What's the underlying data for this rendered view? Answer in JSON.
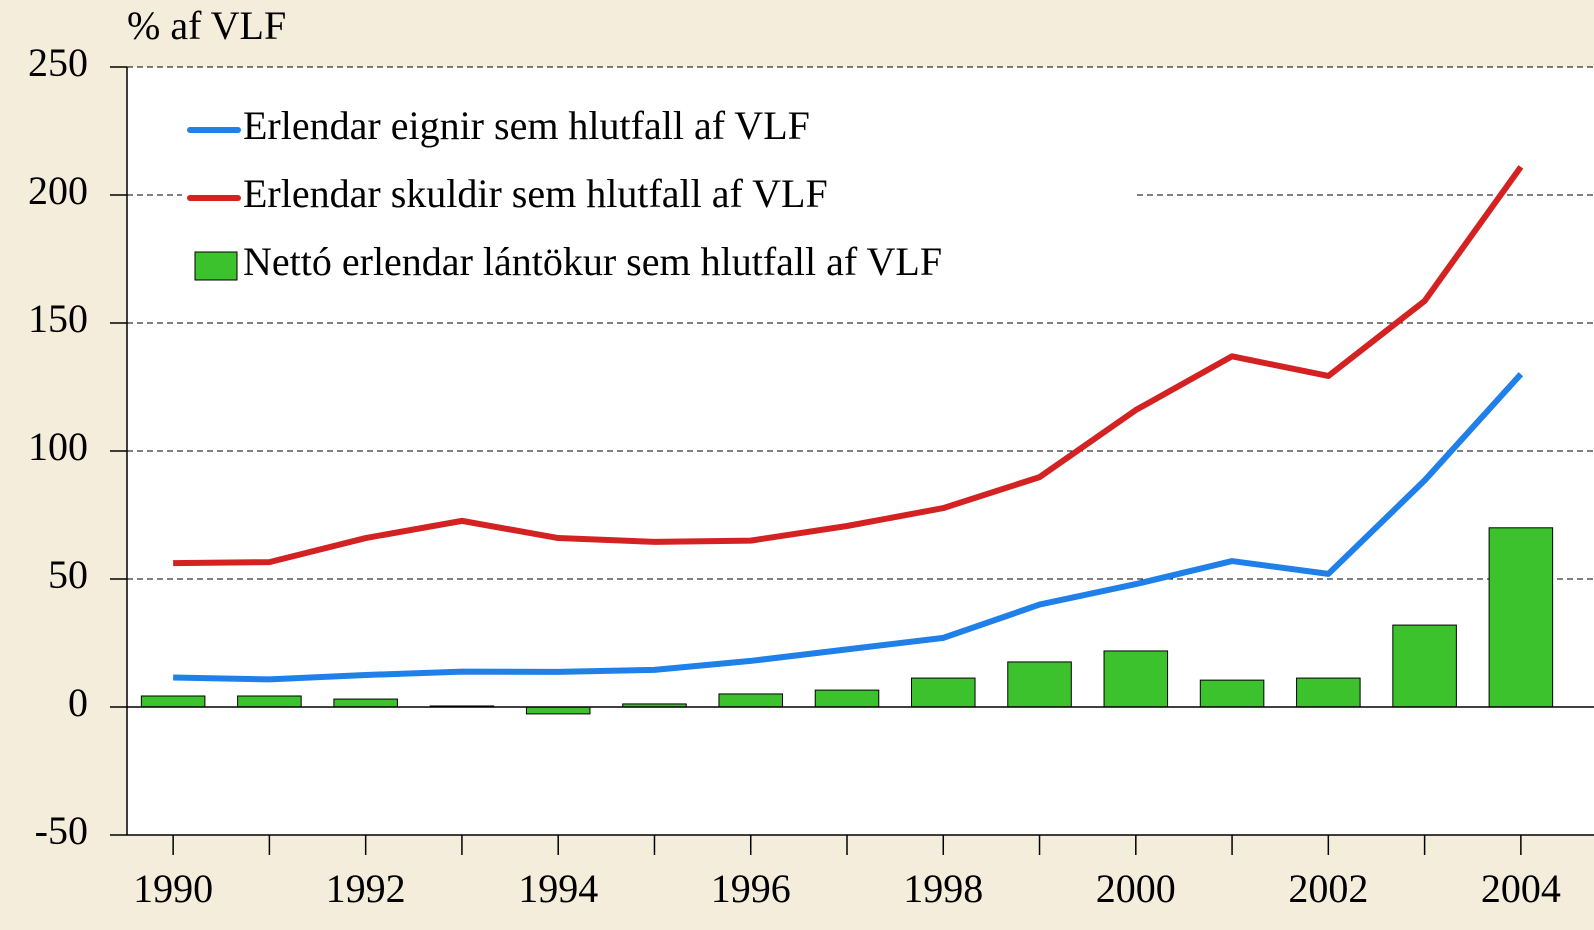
{
  "chart_data": {
    "type": "bar",
    "y_label": "% af VLF",
    "categories": [
      "1990",
      null,
      "1992",
      null,
      "1994",
      null,
      "1996",
      null,
      "1998",
      null,
      "2000",
      null,
      "2002",
      null,
      "2004"
    ],
    "series": [
      {
        "name": "Erlendar eignir sem hlutfall af VLF",
        "type": "line",
        "color": "#1e80e8",
        "values": [
          11.5,
          10.8,
          12.5,
          13.8,
          13.7,
          14.5,
          18,
          22.5,
          27,
          40,
          48,
          57,
          52,
          88.5,
          130
        ]
      },
      {
        "name": "Erlendar skuldir sem hlutfall af VLF",
        "type": "line",
        "color": "#d42222",
        "values": [
          56.2,
          56.6,
          66,
          72.7,
          66,
          64.5,
          65,
          70.7,
          77.7,
          89.8,
          116,
          137,
          129.3,
          158.6,
          211
        ]
      },
      {
        "name": "Nettó erlendar lántökur sem hlutfall af VLF",
        "type": "bar",
        "color": "#3cc22c",
        "values": [
          4.3,
          4.3,
          3.1,
          0.4,
          -2.7,
          1.2,
          5.1,
          6.6,
          11.3,
          17.6,
          21.9,
          10.5,
          11.3,
          32,
          70
        ]
      }
    ],
    "ylim": [
      -50,
      250
    ],
    "yticks": [
      -50,
      0,
      50,
      100,
      150,
      200,
      250
    ],
    "grid": true,
    "legend": "upper left"
  }
}
